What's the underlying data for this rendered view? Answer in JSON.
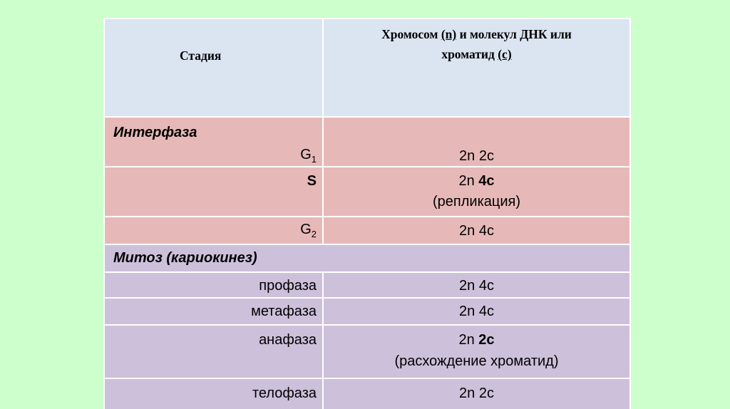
{
  "header": {
    "stage": "Стадия",
    "col2_part1": "Хромосом ",
    "col2_n": "(n)",
    "col2_part2": " и молекул ДНК или",
    "col2_part3": "хроматид ",
    "col2_c": "(с)"
  },
  "interphase": {
    "title": "Интерфаза",
    "g1_main": "G",
    "g1_sub": "1",
    "g1_value": "2n 2c",
    "s_label": "S",
    "s_value_a": "2n ",
    "s_value_b": "4c",
    "s_note": "(репликация)",
    "g2_main": "G",
    "g2_sub": "2",
    "g2_value": "2n 4c"
  },
  "mitosis": {
    "title": "Митоз (кариокинез)",
    "prophase": "профаза",
    "prophase_value": "2n 4c",
    "metaphase": "метафаза",
    "metaphase_value": "2n 4c",
    "anaphase": "анафаза",
    "anaphase_value_a": "2n ",
    "anaphase_value_b": "2c",
    "anaphase_note": "(расхождение хроматид)",
    "telophase": "телофаза",
    "telophase_value": "2n 2c"
  },
  "colors": {
    "background": "#ccffcc",
    "header": "#dbe5f1",
    "interphase": "#e6b9b8",
    "mitosis": "#ccc0da"
  }
}
